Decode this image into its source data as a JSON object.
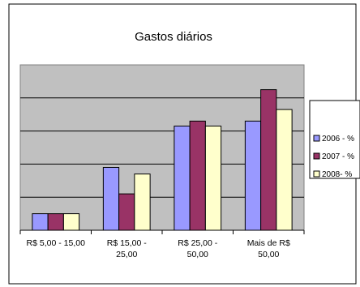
{
  "chart_data": {
    "type": "bar",
    "title": "Gastos diários",
    "categories": [
      [
        "R$ 5,00 - 15,00"
      ],
      [
        "R$ 15,00 -",
        "25,00"
      ],
      [
        "R$ 25,00 -",
        "50,00"
      ],
      [
        "Mais de R$",
        "50,00"
      ]
    ],
    "series": [
      {
        "name": "2006 - %",
        "color": "#9999ff",
        "values": [
          10,
          38,
          63,
          66
        ]
      },
      {
        "name": "2007 - %",
        "color": "#993366",
        "values": [
          10,
          22,
          66,
          85
        ]
      },
      {
        "name": "2008- %",
        "color": "#ffffcc",
        "values": [
          10,
          34,
          63,
          73
        ]
      }
    ],
    "ylim": [
      0,
      100
    ],
    "grid": true,
    "legend": "right",
    "plot_background": "#c0c0c0"
  }
}
